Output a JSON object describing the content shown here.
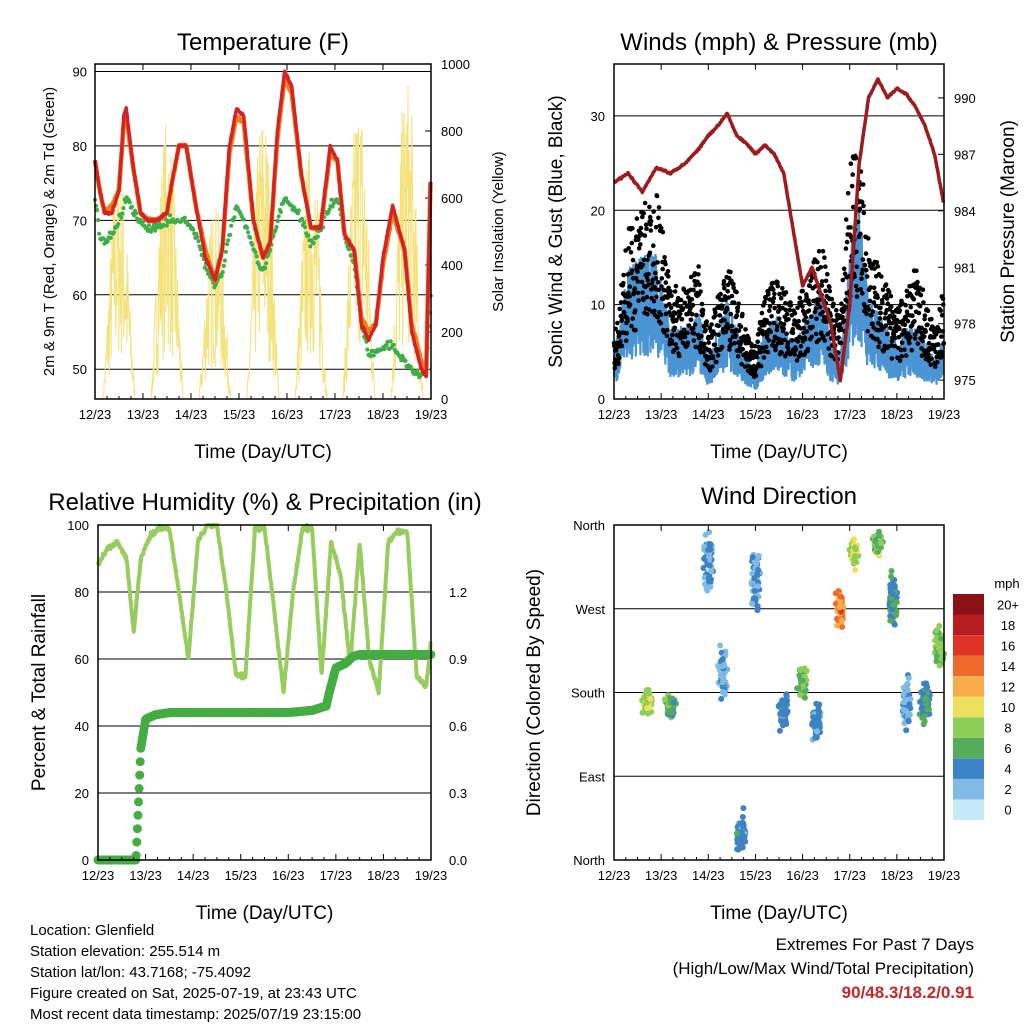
{
  "x_ticks": [
    "12/23",
    "13/23",
    "14/23",
    "15/23",
    "16/23",
    "17/23",
    "18/23",
    "19/23"
  ],
  "colors": {
    "temp2m": "#d42320",
    "temp9m": "#f07b22",
    "dewpoint": "#3fae49",
    "solar": "#f5e27a",
    "gust": "#000000",
    "wind": "#4a94d4",
    "pressure": "#9b1b1f",
    "rh": "#98cc5e",
    "precip": "#44ad42"
  },
  "chart_data": [
    {
      "type": "line",
      "title": "Temperature (F)",
      "xlabel": "Time (Day/UTC)",
      "ylabel": "2m & 9m T (Red, Orange) & 2m Td (Green)",
      "ylabel_right": "Solar Insolation (Yellow)",
      "ylim": [
        46,
        91
      ],
      "ylim_right": [
        0,
        1000
      ],
      "yticks": [
        50,
        60,
        70,
        80,
        90
      ],
      "yticks_right": [
        0,
        200,
        400,
        600,
        800,
        1000
      ],
      "grid": true,
      "x": [
        12.0,
        12.1,
        12.2,
        12.35,
        12.5,
        12.6,
        12.65,
        12.8,
        12.95,
        13.1,
        13.3,
        13.5,
        13.6,
        13.75,
        13.9,
        14.1,
        14.3,
        14.5,
        14.65,
        14.8,
        14.95,
        15.1,
        15.3,
        15.5,
        15.65,
        15.8,
        15.95,
        16.1,
        16.3,
        16.5,
        16.7,
        16.9,
        17.05,
        17.2,
        17.4,
        17.55,
        17.7,
        17.85,
        18.0,
        18.2,
        18.45,
        18.6,
        18.8,
        18.9,
        19.0
      ],
      "series": [
        {
          "name": "2m T",
          "values": [
            78,
            74,
            71,
            71,
            74,
            84,
            85,
            77,
            71,
            70,
            70,
            71,
            75,
            80,
            80,
            72,
            65,
            62,
            66,
            80,
            85,
            84,
            70,
            65,
            67,
            82,
            90,
            88,
            76,
            69,
            69,
            80,
            78,
            68,
            66,
            56,
            54,
            56,
            65,
            72,
            66,
            55,
            50,
            49,
            78
          ]
        },
        {
          "name": "9m T",
          "values": [
            78,
            74,
            71,
            72,
            74,
            83,
            84,
            77,
            71,
            70,
            70,
            71,
            75,
            80,
            80,
            72,
            66,
            62,
            66,
            79,
            84,
            83,
            70,
            65,
            67,
            81,
            89,
            87,
            76,
            69,
            69,
            79,
            78,
            68,
            66,
            57,
            55,
            56,
            64,
            71,
            66,
            56,
            51,
            50,
            78
          ]
        },
        {
          "name": "2m Td",
          "values": [
            73,
            68,
            67,
            68,
            70,
            72,
            73,
            71,
            70,
            69,
            69,
            70,
            70,
            70,
            70,
            68,
            64,
            61,
            63,
            68,
            72,
            70,
            66,
            63,
            66,
            70,
            73,
            72,
            70,
            67,
            69,
            72,
            73,
            68,
            64,
            56,
            52,
            52,
            53,
            53,
            51,
            50,
            49,
            50,
            60
          ]
        }
      ],
      "solar": {
        "name": "Solar Insolation",
        "days": [
          12.5,
          13.5,
          14.5,
          15.5,
          16.5,
          17.5,
          18.5
        ],
        "peaks": [
          720,
          850,
          600,
          900,
          780,
          950,
          980
        ]
      }
    },
    {
      "type": "line",
      "title": "Winds (mph) & Pressure (mb)",
      "xlabel": "Time (Day/UTC)",
      "ylabel": "Sonic Wind & Gust (Blue, Black)",
      "ylabel_right": "Station Pressure (Maroon)",
      "ylim": [
        0,
        35.5
      ],
      "ylim_right": [
        974.0,
        991.8
      ],
      "yticks": [
        0,
        10,
        20,
        30
      ],
      "yticks_right": [
        975,
        978,
        981,
        984,
        987,
        990
      ],
      "grid": true,
      "x": [
        12.0,
        12.3,
        12.6,
        12.9,
        13.2,
        13.5,
        13.8,
        14.0,
        14.2,
        14.4,
        14.6,
        14.8,
        15.0,
        15.2,
        15.4,
        15.6,
        15.8,
        16.0,
        16.2,
        16.4,
        16.6,
        16.8,
        17.0,
        17.2,
        17.4,
        17.6,
        17.8,
        18.0,
        18.2,
        18.4,
        18.6,
        18.8,
        19.0
      ],
      "series": [
        {
          "name": "Sonic Wind",
          "values": [
            3,
            9,
            10,
            10,
            5,
            5,
            6,
            3,
            5,
            7,
            5,
            3,
            2,
            5,
            6,
            5,
            4,
            5,
            6,
            8,
            4,
            3,
            10,
            13,
            7,
            6,
            5,
            4,
            5,
            5,
            4,
            3,
            4
          ]
        },
        {
          "name": "Gust",
          "values": [
            5,
            15,
            17,
            19,
            10,
            10,
            12,
            6,
            9,
            12,
            10,
            6,
            5,
            9,
            11,
            10,
            8,
            10,
            12,
            14,
            10,
            8,
            21,
            24,
            14,
            12,
            10,
            8,
            10,
            12,
            9,
            7,
            10
          ]
        },
        {
          "name": "Station Pressure",
          "values": [
            985.5,
            986.0,
            985.0,
            986.3,
            986.0,
            986.5,
            987.3,
            988.0,
            988.5,
            989.2,
            988.0,
            987.6,
            987.0,
            987.5,
            987.0,
            986.0,
            983.0,
            980.0,
            981.0,
            979.5,
            978.0,
            975.0,
            979.0,
            986.5,
            990.0,
            991.0,
            990.0,
            990.5,
            990.2,
            989.5,
            988.5,
            987.0,
            984.3
          ]
        }
      ]
    },
    {
      "type": "line",
      "title": "Relative Humidity (%) & Precipitation (in)",
      "xlabel": "Time (Day/UTC)",
      "ylabel": "Percent & Total Rainfall",
      "ylim": [
        0,
        100
      ],
      "ylim_right": [
        0,
        1.5
      ],
      "yticks": [
        0,
        20,
        40,
        60,
        80,
        100
      ],
      "yticks_right": [
        "0.0",
        "0.3",
        "0.6",
        "0.9",
        "1.2"
      ],
      "grid": true,
      "x": [
        12.0,
        12.2,
        12.4,
        12.6,
        12.75,
        12.9,
        13.1,
        13.3,
        13.5,
        13.7,
        13.9,
        14.1,
        14.3,
        14.5,
        14.7,
        14.9,
        15.1,
        15.3,
        15.5,
        15.7,
        15.9,
        16.1,
        16.3,
        16.5,
        16.7,
        16.9,
        17.1,
        17.3,
        17.5,
        17.7,
        17.9,
        18.1,
        18.3,
        18.5,
        18.7,
        18.9,
        19.0
      ],
      "series": [
        {
          "name": "Relative Humidity",
          "values": [
            88,
            93,
            95,
            90,
            68,
            90,
            97,
            99,
            99,
            80,
            60,
            95,
            100,
            100,
            80,
            55,
            55,
            99,
            99,
            75,
            50,
            80,
            99,
            99,
            55,
            95,
            85,
            58,
            95,
            60,
            50,
            95,
            98,
            98,
            55,
            52,
            65
          ]
        },
        {
          "name": "Total Precipitation",
          "x": [
            12.0,
            12.6,
            12.8,
            12.9,
            13.0,
            13.2,
            13.5,
            14.0,
            15.0,
            16.0,
            16.5,
            16.8,
            16.85,
            17.0,
            17.1,
            17.2,
            17.35,
            17.5,
            18.0,
            19.0
          ],
          "values": [
            0.0,
            0.0,
            0.0,
            0.5,
            0.63,
            0.65,
            0.66,
            0.66,
            0.66,
            0.66,
            0.67,
            0.69,
            0.74,
            0.86,
            0.87,
            0.88,
            0.91,
            0.92,
            0.92,
            0.92
          ]
        }
      ]
    },
    {
      "type": "scatter",
      "title": "Wind Direction",
      "xlabel": "Time (Day/UTC)",
      "ylabel": "Direction (Colored By Speed)",
      "y_categories": [
        "North",
        "East",
        "South",
        "West",
        "North"
      ],
      "ylim": [
        0,
        360
      ],
      "grid": true,
      "colorbar": {
        "title": "mph",
        "labels": [
          "0",
          "2",
          "4",
          "6",
          "8",
          "10",
          "12",
          "14",
          "16",
          "18",
          "20+"
        ],
        "colors": [
          "#c6e9f7",
          "#7fbbe5",
          "#3d82c4",
          "#55ad5c",
          "#8ecd58",
          "#ede05c",
          "#f7ad4a",
          "#ee6a2a",
          "#dd3425",
          "#b81d20",
          "#8a1214"
        ]
      },
      "clusters": [
        {
          "x": 12.7,
          "dir": 170,
          "spread": 20,
          "speed": 9
        },
        {
          "x": 13.2,
          "dir": 165,
          "spread": 20,
          "speed": 6
        },
        {
          "x": 14.0,
          "dir": 320,
          "spread": 50,
          "speed": 3
        },
        {
          "x": 14.3,
          "dir": 200,
          "spread": 40,
          "speed": 3
        },
        {
          "x": 14.7,
          "dir": 30,
          "spread": 30,
          "speed": 4
        },
        {
          "x": 15.0,
          "dir": 300,
          "spread": 50,
          "speed": 3
        },
        {
          "x": 15.6,
          "dir": 160,
          "spread": 30,
          "speed": 4
        },
        {
          "x": 16.0,
          "dir": 190,
          "spread": 30,
          "speed": 7
        },
        {
          "x": 16.3,
          "dir": 150,
          "spread": 30,
          "speed": 4
        },
        {
          "x": 16.8,
          "dir": 270,
          "spread": 30,
          "speed": 13
        },
        {
          "x": 17.1,
          "dir": 330,
          "spread": 20,
          "speed": 9
        },
        {
          "x": 17.6,
          "dir": 340,
          "spread": 20,
          "speed": 7
        },
        {
          "x": 17.9,
          "dir": 280,
          "spread": 40,
          "speed": 5
        },
        {
          "x": 18.2,
          "dir": 170,
          "spread": 40,
          "speed": 3
        },
        {
          "x": 18.6,
          "dir": 170,
          "spread": 30,
          "speed": 5
        },
        {
          "x": 18.9,
          "dir": 230,
          "spread": 30,
          "speed": 7
        }
      ]
    }
  ],
  "info": {
    "location": "Location: Glenfield",
    "elevation": "Station elevation: 255.514 m",
    "latlon": "Station lat/lon: 43.7168; -75.4092",
    "created": "Figure created on Sat, 2025-07-19, at 23:43 UTC",
    "recent": "Most recent data timestamp: 2025/07/19 23:15:00"
  },
  "extremes": {
    "line1": "Extremes For Past 7 Days",
    "line2": "(High/Low/Max Wind/Total Precipitation)",
    "values": "90/48.3/18.2/0.91"
  }
}
